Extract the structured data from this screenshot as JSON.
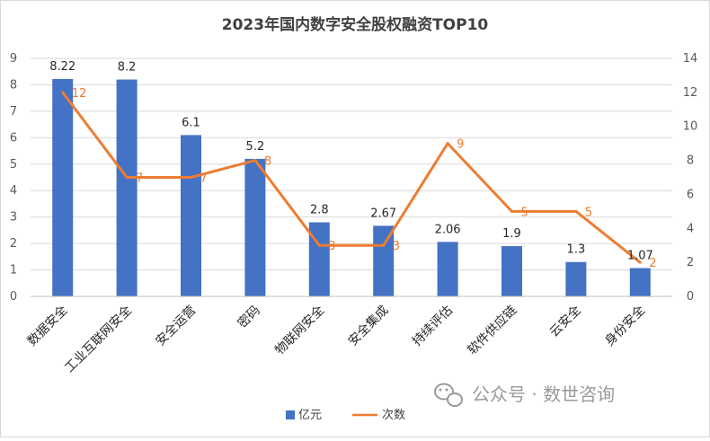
{
  "chart_data": {
    "type": "bar",
    "title": "2023年国内数字安全股权融资TOP10",
    "categories": [
      "数据安全",
      "工业互联网安全",
      "安全运营",
      "密码",
      "物联网安全",
      "安全集成",
      "持续评估",
      "软件供应链",
      "云安全",
      "身份安全"
    ],
    "series": [
      {
        "name": "亿元",
        "type": "bar",
        "axis": "left",
        "color": "#4472c4",
        "values": [
          8.22,
          8.2,
          6.1,
          5.2,
          2.8,
          2.67,
          2.06,
          1.9,
          1.3,
          1.07
        ],
        "labels": [
          "8.22",
          "8.2",
          "6.1",
          "5.2",
          "2.8",
          "2.67",
          "2.06",
          "1.9",
          "1.3",
          "1.07"
        ]
      },
      {
        "name": "次数",
        "type": "line",
        "axis": "right",
        "color": "#ed7d31",
        "values": [
          12,
          7,
          7,
          8,
          3,
          3,
          9,
          5,
          5,
          2
        ],
        "labels": [
          "12",
          "7",
          "7",
          "8",
          "3",
          "3",
          "9",
          "5",
          "5",
          "2"
        ]
      }
    ],
    "y_left": {
      "min": 0,
      "max": 9,
      "ticks": [
        "0",
        "1",
        "2",
        "3",
        "4",
        "5",
        "6",
        "7",
        "8",
        "9"
      ]
    },
    "y_right": {
      "min": 0,
      "max": 14,
      "ticks": [
        "0",
        "2",
        "4",
        "6",
        "8",
        "10",
        "12",
        "14"
      ]
    },
    "legend_position": "bottom"
  },
  "watermark": {
    "text": "公众号 · 数世咨询",
    "icon": "wechat-icon"
  }
}
